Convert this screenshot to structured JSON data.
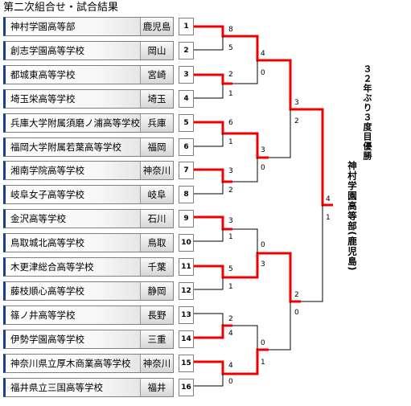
{
  "title": "第二次組合せ・試合結果",
  "teams": [
    {
      "seed": "1",
      "school": "神村学園高等部",
      "pref": "鹿児島"
    },
    {
      "seed": "2",
      "school": "創志学園高等学校",
      "pref": "岡山"
    },
    {
      "seed": "3",
      "school": "都城東高等学校",
      "pref": "宮崎"
    },
    {
      "seed": "4",
      "school": "埼玉栄高等学校",
      "pref": "埼玉"
    },
    {
      "seed": "5",
      "school": "兵庫大学附属須磨ノ浦高等学校",
      "pref": "兵庫"
    },
    {
      "seed": "6",
      "school": "福岡大学附属若葉高等学校",
      "pref": "福岡"
    },
    {
      "seed": "7",
      "school": "湘南学院高等学校",
      "pref": "神奈川"
    },
    {
      "seed": "8",
      "school": "岐阜女子高等学校",
      "pref": "岐阜"
    },
    {
      "seed": "9",
      "school": "金沢高等学校",
      "pref": "石川"
    },
    {
      "seed": "10",
      "school": "鳥取城北高等学校",
      "pref": "鳥取"
    },
    {
      "seed": "11",
      "school": "木更津総合高等学校",
      "pref": "千葉"
    },
    {
      "seed": "12",
      "school": "藤枝順心高等学校",
      "pref": "静岡"
    },
    {
      "seed": "13",
      "school": "篠ノ井高等学校",
      "pref": "長野"
    },
    {
      "seed": "14",
      "school": "伊勢学園高等学校",
      "pref": "三重"
    },
    {
      "seed": "15",
      "school": "神奈川県立厚木商業高等学校",
      "pref": "神奈川"
    },
    {
      "seed": "16",
      "school": "福井県立三国高等学校",
      "pref": "福井"
    }
  ],
  "round1_scores": [
    {
      "top": "8",
      "bottom": "5"
    },
    {
      "top": "2",
      "bottom": "1"
    },
    {
      "top": "6",
      "bottom": "1"
    },
    {
      "top": "3",
      "bottom": "2"
    },
    {
      "top": "3",
      "bottom": "1"
    },
    {
      "top": "5",
      "bottom": "1"
    },
    {
      "top": "2",
      "bottom": "4"
    },
    {
      "top": "4",
      "bottom": "0"
    }
  ],
  "round2_scores": [
    {
      "top": "4",
      "bottom": "0"
    },
    {
      "top": "3",
      "bottom": "0"
    },
    {
      "top": "0",
      "bottom": "3"
    },
    {
      "top": "0",
      "bottom": "1"
    }
  ],
  "semi_scores": [
    {
      "top": "3",
      "bottom": "2"
    },
    {
      "top": "2",
      "bottom": "0"
    }
  ],
  "final_score": {
    "top": "4",
    "bottom": "1"
  },
  "champion_heading": "３２年ぶり３度目優勝",
  "champion_name": "神村学園高等部(鹿児島)",
  "colors": {
    "winner_line": "#ee0000",
    "loser_line": "#000000",
    "team_edge": "#1a3f8c"
  }
}
